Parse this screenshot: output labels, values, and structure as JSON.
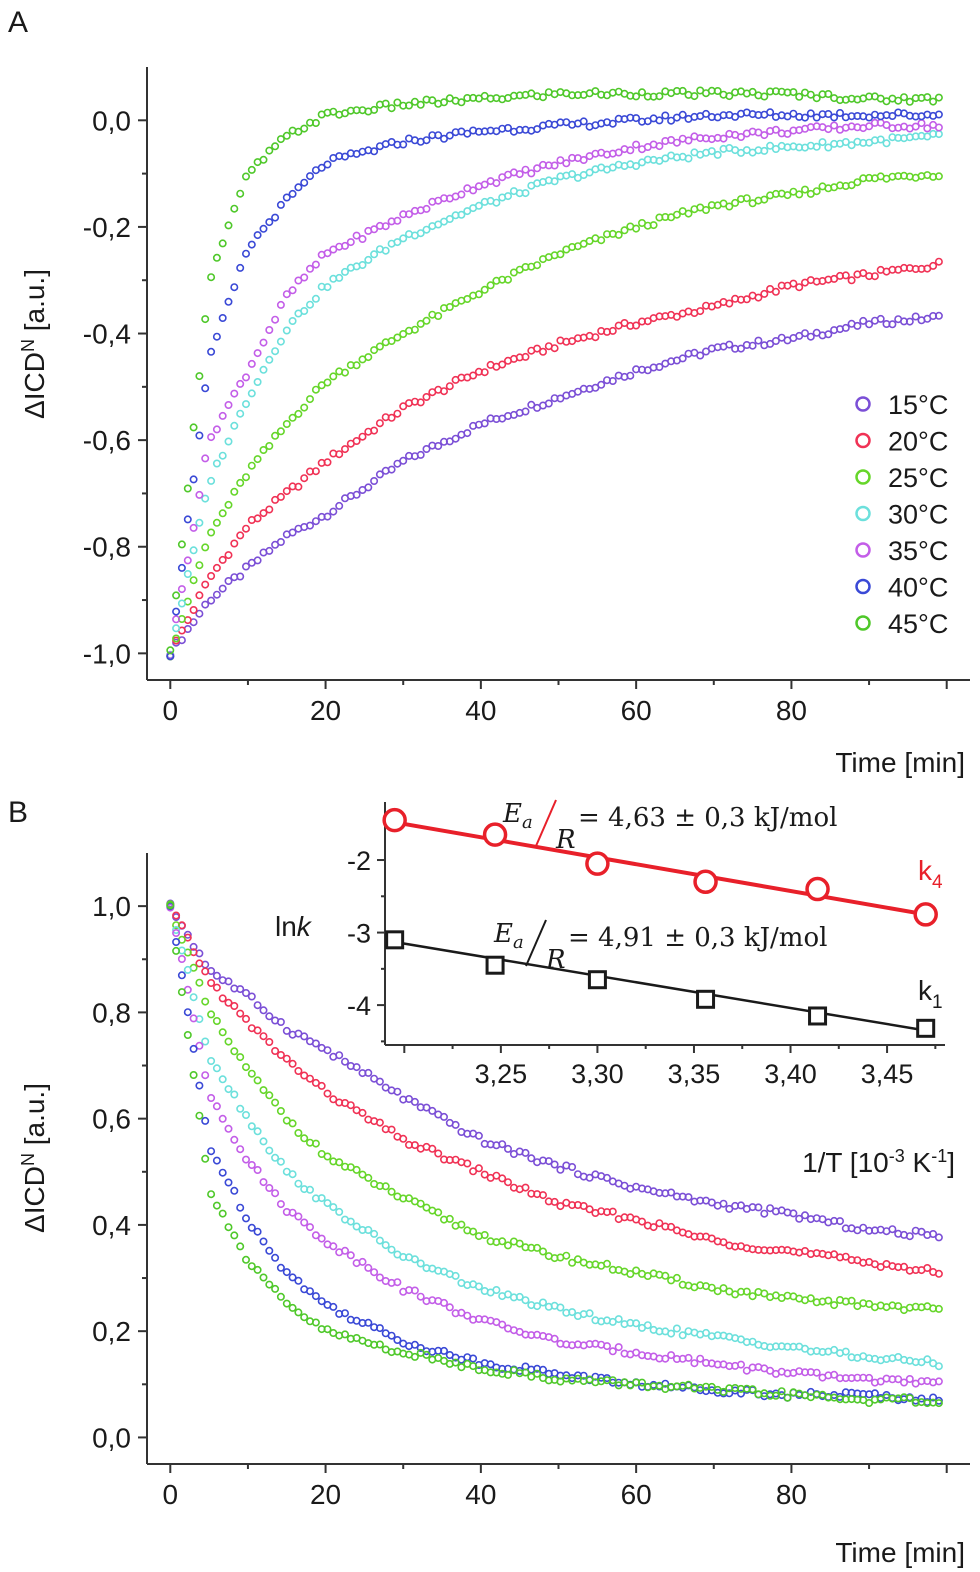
{
  "chart_data": [
    {
      "panel": "A",
      "type": "scatter",
      "title": "",
      "xlabel": "Time [min]",
      "ylabel_parts": {
        "pre": "ΔICD",
        "sup": "N",
        "post": " [a.u.]"
      },
      "xlim": [
        -3,
        103
      ],
      "ylim": [
        -1.05,
        0.1
      ],
      "xticks": [
        0,
        20,
        40,
        60,
        80
      ],
      "xtick_labels": [
        "0",
        "20",
        "40",
        "60",
        "80"
      ],
      "yticks": [
        0.0,
        -0.2,
        -0.4,
        -0.6,
        -0.8,
        -1.0
      ],
      "ytick_labels": [
        "0,0",
        "-0,2",
        "-0,4",
        "-0,6",
        "-0,8",
        "-1,0"
      ],
      "legend_position": "right",
      "legend": [
        "15°C",
        "20°C",
        "25°C",
        "30°C",
        "35°C",
        "40°C",
        "45°C"
      ],
      "x": [
        0,
        5,
        10,
        15,
        20,
        30,
        40,
        50,
        60,
        70,
        80,
        90,
        99
      ],
      "series": [
        {
          "name": "15°C",
          "color": "#7b4fd6",
          "values": [
            -1.0,
            -0.9,
            -0.84,
            -0.78,
            -0.74,
            -0.64,
            -0.57,
            -0.52,
            -0.47,
            -0.43,
            -0.41,
            -0.38,
            -0.37
          ]
        },
        {
          "name": "20°C",
          "color": "#f03255",
          "values": [
            -1.0,
            -0.86,
            -0.76,
            -0.7,
            -0.64,
            -0.54,
            -0.47,
            -0.42,
            -0.38,
            -0.35,
            -0.31,
            -0.29,
            -0.27
          ]
        },
        {
          "name": "25°C",
          "color": "#66d62a",
          "values": [
            -1.0,
            -0.78,
            -0.66,
            -0.57,
            -0.49,
            -0.4,
            -0.32,
            -0.25,
            -0.2,
            -0.16,
            -0.14,
            -0.11,
            -0.1
          ]
        },
        {
          "name": "30°C",
          "color": "#6ce0dc",
          "values": [
            -1.0,
            -0.68,
            -0.52,
            -0.39,
            -0.31,
            -0.22,
            -0.16,
            -0.11,
            -0.08,
            -0.06,
            -0.05,
            -0.04,
            -0.03
          ]
        },
        {
          "name": "35°C",
          "color": "#c35ee8",
          "values": [
            -1.0,
            -0.6,
            -0.47,
            -0.33,
            -0.25,
            -0.18,
            -0.12,
            -0.08,
            -0.05,
            -0.03,
            -0.02,
            -0.01,
            -0.01
          ]
        },
        {
          "name": "40°C",
          "color": "#3a49d6",
          "values": [
            -1.0,
            -0.45,
            -0.24,
            -0.15,
            -0.08,
            -0.04,
            -0.02,
            -0.01,
            0.0,
            0.01,
            0.01,
            0.01,
            0.01
          ]
        },
        {
          "name": "45°C",
          "color": "#4fc82a",
          "values": [
            -1.0,
            -0.3,
            -0.1,
            -0.03,
            0.01,
            0.03,
            0.04,
            0.05,
            0.05,
            0.05,
            0.05,
            0.04,
            0.04
          ]
        }
      ]
    },
    {
      "panel": "B",
      "type": "scatter",
      "title": "",
      "xlabel": "Time [min]",
      "ylabel_parts": {
        "pre": "ΔICD",
        "sup": "N",
        "post": " [a.u.]"
      },
      "xlim": [
        -3,
        103
      ],
      "ylim": [
        -0.05,
        1.1
      ],
      "xticks": [
        0,
        20,
        40,
        60,
        80
      ],
      "xtick_labels": [
        "0",
        "20",
        "40",
        "60",
        "80"
      ],
      "yticks": [
        1.0,
        0.8,
        0.6,
        0.4,
        0.2,
        0.0
      ],
      "ytick_labels": [
        "1,0",
        "0,8",
        "0,6",
        "0,4",
        "0,2",
        "0,0"
      ],
      "x": [
        0,
        5,
        10,
        15,
        20,
        30,
        40,
        50,
        60,
        70,
        80,
        90,
        99
      ],
      "series": [
        {
          "name": "15°C",
          "color": "#7b4fd6",
          "values": [
            1.0,
            0.88,
            0.83,
            0.77,
            0.73,
            0.64,
            0.56,
            0.51,
            0.47,
            0.44,
            0.42,
            0.39,
            0.38
          ]
        },
        {
          "name": "20°C",
          "color": "#f03255",
          "values": [
            1.0,
            0.86,
            0.78,
            0.71,
            0.65,
            0.56,
            0.5,
            0.44,
            0.41,
            0.37,
            0.35,
            0.33,
            0.31
          ]
        },
        {
          "name": "25°C",
          "color": "#66d62a",
          "values": [
            1.0,
            0.8,
            0.69,
            0.6,
            0.53,
            0.45,
            0.38,
            0.34,
            0.31,
            0.28,
            0.26,
            0.25,
            0.24
          ]
        },
        {
          "name": "30°C",
          "color": "#6ce0dc",
          "values": [
            1.0,
            0.72,
            0.6,
            0.5,
            0.44,
            0.34,
            0.28,
            0.24,
            0.21,
            0.19,
            0.17,
            0.15,
            0.14
          ]
        },
        {
          "name": "35°C",
          "color": "#c35ee8",
          "values": [
            1.0,
            0.65,
            0.52,
            0.43,
            0.37,
            0.28,
            0.22,
            0.18,
            0.16,
            0.14,
            0.12,
            0.11,
            0.1
          ]
        },
        {
          "name": "40°C",
          "color": "#3a49d6",
          "values": [
            1.0,
            0.55,
            0.41,
            0.31,
            0.25,
            0.18,
            0.14,
            0.12,
            0.1,
            0.09,
            0.08,
            0.08,
            0.07
          ]
        },
        {
          "name": "45°C",
          "color": "#4fc82a",
          "values": [
            1.0,
            0.47,
            0.33,
            0.25,
            0.2,
            0.16,
            0.13,
            0.11,
            0.1,
            0.09,
            0.08,
            0.07,
            0.07
          ]
        }
      ]
    },
    {
      "panel": "B-inset",
      "type": "scatter",
      "xlabel_parts": {
        "pre": "1/T [10",
        "sup1": "-3",
        "mid": " K",
        "sup2": "-1",
        "post": "]"
      },
      "ylabel_parts": {
        "pre": "ln",
        "italic": "k"
      },
      "xlim": [
        3.19,
        3.48
      ],
      "ylim": [
        -4.55,
        -1.2
      ],
      "xticks": [
        3.25,
        3.3,
        3.35,
        3.4,
        3.45
      ],
      "xtick_labels": [
        "3,25",
        "3,30",
        "3,35",
        "3,40",
        "3,45"
      ],
      "yticks": [
        -2,
        -3,
        -4
      ],
      "ytick_labels": [
        "-2",
        "-3",
        "-4"
      ],
      "series": [
        {
          "name": "k_4",
          "label_main": "k",
          "label_sub": "4",
          "marker": "circle",
          "color": "#e8202a",
          "x": [
            3.195,
            3.247,
            3.3,
            3.356,
            3.414,
            3.47
          ],
          "y": [
            -1.45,
            -1.65,
            -2.05,
            -2.3,
            -2.4,
            -2.75
          ],
          "fit": {
            "x": [
              3.195,
              3.47
            ],
            "y": [
              -1.48,
              -2.75
            ]
          },
          "equation": {
            "num": "E",
            "num_sub": "a",
            "den": "R",
            "value": " = 4,63 ± 0,3 kJ/mol"
          }
        },
        {
          "name": "k_1",
          "label_main": "k",
          "label_sub": "1",
          "marker": "square",
          "color": "#1a1a1a",
          "x": [
            3.195,
            3.247,
            3.3,
            3.356,
            3.414,
            3.47
          ],
          "y": [
            -3.1,
            -3.45,
            -3.65,
            -3.92,
            -4.15,
            -4.32
          ],
          "fit": {
            "x": [
              3.195,
              3.47
            ],
            "y": [
              -3.13,
              -4.35
            ]
          },
          "equation": {
            "num": "E",
            "num_sub": "a",
            "den": "R",
            "value": " = 4,91 ± 0,3 kJ/mol"
          }
        }
      ]
    }
  ],
  "panel_labels": {
    "a": "A",
    "b": "B"
  }
}
